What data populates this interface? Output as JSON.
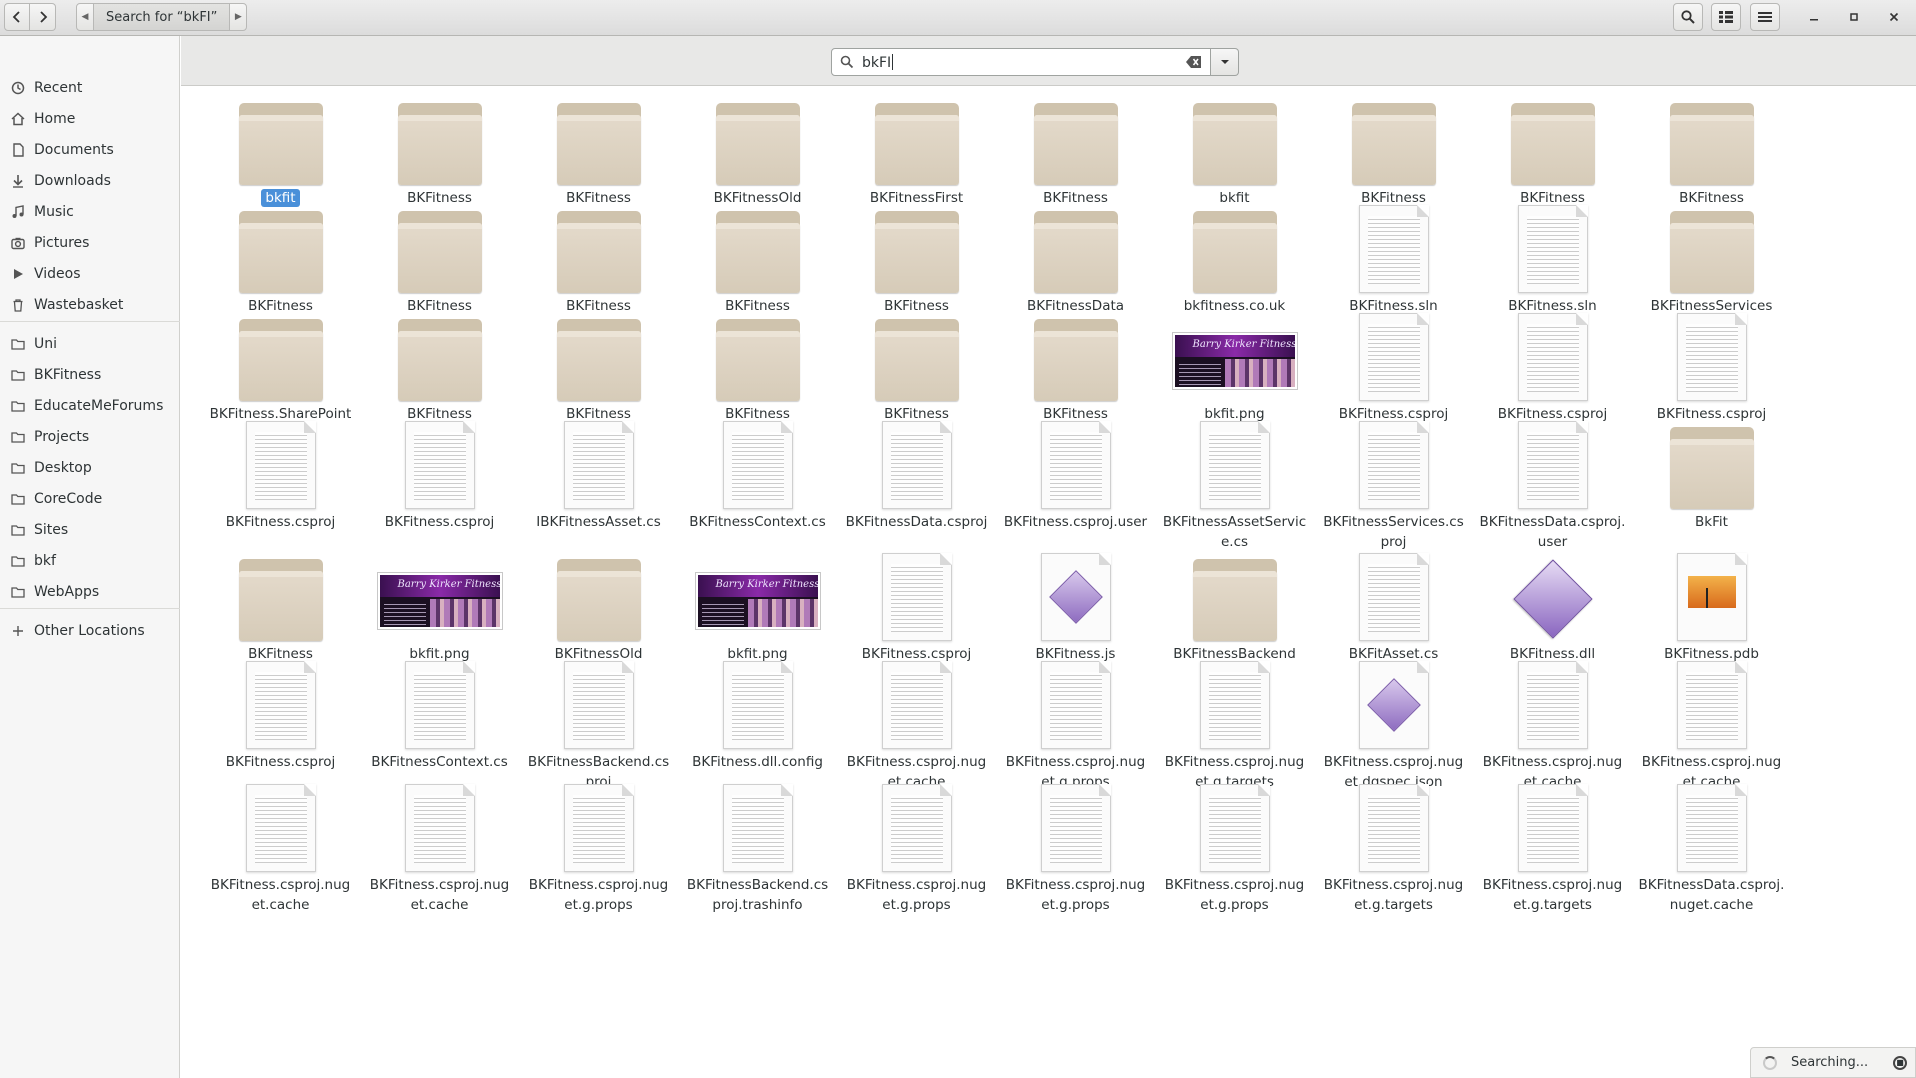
{
  "window": {
    "path_label": "Search for “bkFI”"
  },
  "search": {
    "value": "bkFI"
  },
  "sidebar": {
    "items": [
      {
        "label": "Recent",
        "icon": "clock-icon"
      },
      {
        "label": "Home",
        "icon": "home-icon"
      },
      {
        "label": "Documents",
        "icon": "document-icon"
      },
      {
        "label": "Downloads",
        "icon": "download-icon"
      },
      {
        "label": "Music",
        "icon": "music-icon"
      },
      {
        "label": "Pictures",
        "icon": "camera-icon"
      },
      {
        "label": "Videos",
        "icon": "video-icon"
      },
      {
        "label": "Wastebasket",
        "icon": "trash-icon"
      },
      {
        "label": "Uni",
        "icon": "folder-icon"
      },
      {
        "label": "BKFitness",
        "icon": "folder-icon"
      },
      {
        "label": "EducateMeForums",
        "icon": "folder-icon"
      },
      {
        "label": "Projects",
        "icon": "folder-icon"
      },
      {
        "label": "Desktop",
        "icon": "folder-icon"
      },
      {
        "label": "CoreCode",
        "icon": "folder-icon"
      },
      {
        "label": "Sites",
        "icon": "folder-icon"
      },
      {
        "label": "bkf",
        "icon": "folder-icon"
      },
      {
        "label": "WebApps",
        "icon": "folder-icon"
      },
      {
        "label": "Other Locations",
        "icon": "plus-icon"
      }
    ]
  },
  "files": [
    {
      "name": "bkfit",
      "type": "folder",
      "selected": true
    },
    {
      "name": "BKFitness",
      "type": "folder"
    },
    {
      "name": "BKFitness",
      "type": "folder"
    },
    {
      "name": "BKFitnessOld",
      "type": "folder"
    },
    {
      "name": "BKFitnessFirst",
      "type": "folder"
    },
    {
      "name": "BKFitness",
      "type": "folder"
    },
    {
      "name": "bkfit",
      "type": "folder"
    },
    {
      "name": "BKFitness",
      "type": "folder"
    },
    {
      "name": "BKFitness",
      "type": "folder"
    },
    {
      "name": "BKFitness",
      "type": "folder"
    },
    {
      "name": "BKFitness",
      "type": "folder"
    },
    {
      "name": "BKFitness",
      "type": "folder"
    },
    {
      "name": "BKFitness",
      "type": "folder"
    },
    {
      "name": "BKFitness",
      "type": "folder"
    },
    {
      "name": "BKFitness",
      "type": "folder"
    },
    {
      "name": "BKFitnessData",
      "type": "folder"
    },
    {
      "name": "bkfitness.co.uk",
      "type": "folder"
    },
    {
      "name": "BKFitness.sln",
      "type": "doc"
    },
    {
      "name": "BKFitness.sln",
      "type": "doc"
    },
    {
      "name": "BKFitnessServices",
      "type": "folder"
    },
    {
      "name": "BKFitness.SharePoint",
      "type": "folder"
    },
    {
      "name": "BKFitness",
      "type": "folder"
    },
    {
      "name": "BKFitness",
      "type": "folder"
    },
    {
      "name": "BKFitness",
      "type": "folder"
    },
    {
      "name": "BKFitness",
      "type": "folder"
    },
    {
      "name": "BKFitness",
      "type": "folder"
    },
    {
      "name": "bkfit.png",
      "type": "image"
    },
    {
      "name": "BKFitness.csproj",
      "type": "doc"
    },
    {
      "name": "BKFitness.csproj",
      "type": "doc"
    },
    {
      "name": "BKFitness.csproj",
      "type": "doc"
    },
    {
      "name": "BKFitness.csproj",
      "type": "doc"
    },
    {
      "name": "BKFitness.csproj",
      "type": "doc"
    },
    {
      "name": "IBKFitnessAsset.cs",
      "type": "doc"
    },
    {
      "name": "BKFitnessContext.cs",
      "type": "doc"
    },
    {
      "name": "BKFitnessData.csproj",
      "type": "doc"
    },
    {
      "name": "BKFitness.csproj.user",
      "type": "doc"
    },
    {
      "name": "BKFitnessAssetService.cs",
      "type": "doc"
    },
    {
      "name": "BKFitnessServices.csproj",
      "type": "doc"
    },
    {
      "name": "BKFitnessData.csproj.user",
      "type": "doc"
    },
    {
      "name": "BkFit",
      "type": "folder"
    },
    {
      "name": "BKFitness",
      "type": "folder"
    },
    {
      "name": "bkfit.png",
      "type": "image"
    },
    {
      "name": "BKFitnessOld",
      "type": "folder"
    },
    {
      "name": "bkfit.png",
      "type": "image"
    },
    {
      "name": "BKFitness.csproj",
      "type": "doc"
    },
    {
      "name": "BKFitness.js",
      "type": "docgem"
    },
    {
      "name": "BKFitnessBackend",
      "type": "folder"
    },
    {
      "name": "BKFitAsset.cs",
      "type": "doc"
    },
    {
      "name": "BKFitness.dll",
      "type": "dll"
    },
    {
      "name": "BKFitness.pdb",
      "type": "pdf"
    },
    {
      "name": "BKFitness.csproj",
      "type": "doc"
    },
    {
      "name": "BKFitnessContext.cs",
      "type": "doc"
    },
    {
      "name": "BKFitnessBackend.csproj",
      "type": "doc"
    },
    {
      "name": "BKFitness.dll.config",
      "type": "doc"
    },
    {
      "name": "BKFitness.csproj.nuget.cache",
      "type": "doc"
    },
    {
      "name": "BKFitness.csproj.nuget.g.props",
      "type": "doc"
    },
    {
      "name": "BKFitness.csproj.nuget.g.targets",
      "type": "doc"
    },
    {
      "name": "BKFitness.csproj.nuget.dgspec.json",
      "type": "docgem"
    },
    {
      "name": "BKFitness.csproj.nuget.cache",
      "type": "doc"
    },
    {
      "name": "BKFitness.csproj.nuget.cache",
      "type": "doc"
    },
    {
      "name": "BKFitness.csproj.nuget.cache",
      "type": "doc"
    },
    {
      "name": "BKFitness.csproj.nuget.cache",
      "type": "doc"
    },
    {
      "name": "BKFitness.csproj.nuget.g.props",
      "type": "doc"
    },
    {
      "name": "BKFitnessBackend.csproj.trashinfo",
      "type": "doc"
    },
    {
      "name": "BKFitness.csproj.nuget.g.props",
      "type": "doc"
    },
    {
      "name": "BKFitness.csproj.nuget.g.props",
      "type": "doc"
    },
    {
      "name": "BKFitness.csproj.nuget.g.props",
      "type": "doc"
    },
    {
      "name": "BKFitness.csproj.nuget.g.targets",
      "type": "doc"
    },
    {
      "name": "BKFitness.csproj.nuget.g.targets",
      "type": "doc"
    },
    {
      "name": "BKFitnessData.csproj.nuget.cache",
      "type": "doc"
    }
  ],
  "status": {
    "label": "Searching..."
  }
}
